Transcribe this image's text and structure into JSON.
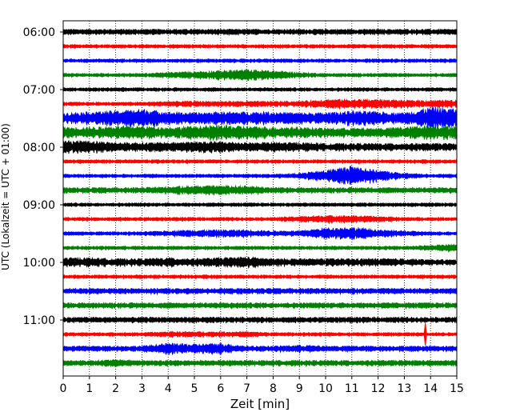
{
  "chart_data": {
    "type": "line",
    "chart_kind": "helicorder seismogram",
    "xlabel": "Zeit  [min]",
    "ylabel": "UTC (Lokalzeit = UTC + 01:00)",
    "xlim": [
      0,
      15
    ],
    "x_ticks": [
      0,
      1,
      2,
      3,
      4,
      5,
      6,
      7,
      8,
      9,
      10,
      11,
      12,
      13,
      14,
      15
    ],
    "x_tick_labels": [
      "0",
      "1",
      "2",
      "3",
      "4",
      "5",
      "6",
      "7",
      "8",
      "9",
      "10",
      "11",
      "12",
      "13",
      "14",
      "15"
    ],
    "y_tick_labels": [
      "06:00",
      "07:00",
      "08:00",
      "09:00",
      "10:00",
      "11:00"
    ],
    "grid": "vertical dotted",
    "trace_colors": [
      "#000000",
      "#ff0000",
      "#0000ff",
      "#008000"
    ],
    "traces": [
      {
        "start": "06:00",
        "amp": [
          3,
          3,
          3,
          3,
          3,
          3,
          3,
          3,
          3,
          3,
          3,
          3,
          3,
          3,
          3,
          3
        ]
      },
      {
        "start": "06:15",
        "amp": [
          2,
          2,
          2,
          2,
          2,
          2,
          2,
          2,
          2,
          2,
          2,
          2,
          2,
          2,
          2,
          2
        ]
      },
      {
        "start": "06:30",
        "amp": [
          2,
          2,
          2,
          2,
          2,
          2,
          2,
          2,
          2,
          2,
          2,
          2,
          2,
          2,
          2,
          2
        ]
      },
      {
        "start": "06:45",
        "amp": [
          2,
          2,
          2,
          2,
          3,
          4,
          5,
          6,
          5,
          3,
          2,
          2,
          2,
          2,
          2,
          2
        ]
      },
      {
        "start": "07:00",
        "amp": [
          2,
          2,
          2,
          2,
          2,
          2,
          2,
          2,
          2,
          2,
          2,
          2,
          2,
          2,
          2,
          2
        ]
      },
      {
        "start": "07:15",
        "amp": [
          2,
          2,
          2,
          2,
          3,
          3,
          3,
          3,
          3,
          3,
          5,
          5,
          5,
          4,
          4,
          4
        ]
      },
      {
        "start": "07:30",
        "amp": [
          6,
          7,
          8,
          10,
          7,
          6,
          7,
          7,
          7,
          6,
          6,
          8,
          7,
          6,
          12,
          10
        ]
      },
      {
        "start": "07:45",
        "amp": [
          6,
          6,
          7,
          7,
          6,
          7,
          8,
          7,
          6,
          6,
          5,
          5,
          5,
          6,
          8,
          7
        ]
      },
      {
        "start": "08:00",
        "amp": [
          7,
          7,
          5,
          5,
          5,
          6,
          6,
          5,
          5,
          5,
          4,
          4,
          4,
          4,
          4,
          4
        ]
      },
      {
        "start": "08:15",
        "amp": [
          2,
          2,
          2,
          2,
          2,
          2,
          2,
          2,
          2,
          2,
          2,
          2,
          2,
          2,
          2,
          2
        ]
      },
      {
        "start": "08:30",
        "amp": [
          2,
          2,
          2,
          2,
          2,
          2,
          2,
          2,
          2,
          3,
          6,
          11,
          6,
          3,
          2,
          2
        ]
      },
      {
        "start": "08:45",
        "amp": [
          3,
          3,
          3,
          3,
          4,
          5,
          5,
          5,
          3,
          3,
          3,
          3,
          3,
          3,
          3,
          3
        ]
      },
      {
        "start": "09:00",
        "amp": [
          2,
          2,
          2,
          2,
          2,
          2,
          2,
          2,
          2,
          2,
          2,
          2,
          2,
          2,
          2,
          2
        ]
      },
      {
        "start": "09:15",
        "amp": [
          2,
          2,
          2,
          2,
          2,
          2,
          2,
          2,
          2,
          3,
          4,
          4,
          3,
          2,
          2,
          2
        ]
      },
      {
        "start": "09:30",
        "amp": [
          2,
          2,
          2,
          2,
          3,
          4,
          4,
          4,
          3,
          3,
          6,
          7,
          4,
          3,
          2,
          2
        ]
      },
      {
        "start": "09:45",
        "amp": [
          2,
          2,
          2,
          2,
          2,
          2,
          2,
          2,
          2,
          2,
          2,
          2,
          2,
          2,
          3,
          4
        ]
      },
      {
        "start": "10:00",
        "amp": [
          5,
          5,
          4,
          4,
          5,
          4,
          5,
          6,
          4,
          4,
          4,
          4,
          4,
          4,
          3,
          3
        ]
      },
      {
        "start": "10:15",
        "amp": [
          2,
          2,
          2,
          2,
          2,
          2,
          2,
          2,
          2,
          2,
          2,
          2,
          2,
          2,
          2,
          2
        ]
      },
      {
        "start": "10:30",
        "amp": [
          3,
          3,
          3,
          3,
          3,
          3,
          3,
          3,
          3,
          3,
          3,
          3,
          3,
          3,
          3,
          3
        ]
      },
      {
        "start": "10:45",
        "amp": [
          3,
          3,
          3,
          3,
          3,
          3,
          3,
          3,
          3,
          3,
          3,
          3,
          3,
          3,
          3,
          3
        ]
      },
      {
        "start": "11:00",
        "amp": [
          3,
          3,
          3,
          3,
          3,
          3,
          3,
          3,
          3,
          3,
          3,
          3,
          3,
          3,
          3,
          3
        ]
      },
      {
        "start": "11:15",
        "amp": [
          2,
          2,
          2,
          2,
          3,
          3,
          3,
          3,
          2,
          2,
          2,
          2,
          2,
          2,
          2,
          2
        ]
      },
      {
        "start": "11:30",
        "amp": [
          3,
          3,
          3,
          3,
          6,
          5,
          6,
          3,
          3,
          4,
          3,
          3,
          3,
          3,
          3,
          3
        ]
      },
      {
        "start": "11:45",
        "amp": [
          3,
          3,
          4,
          3,
          3,
          3,
          3,
          3,
          3,
          3,
          3,
          3,
          3,
          3,
          3,
          3
        ]
      }
    ],
    "spikes": [
      {
        "trace": 21,
        "x": 13.8,
        "amp": 14
      }
    ]
  }
}
